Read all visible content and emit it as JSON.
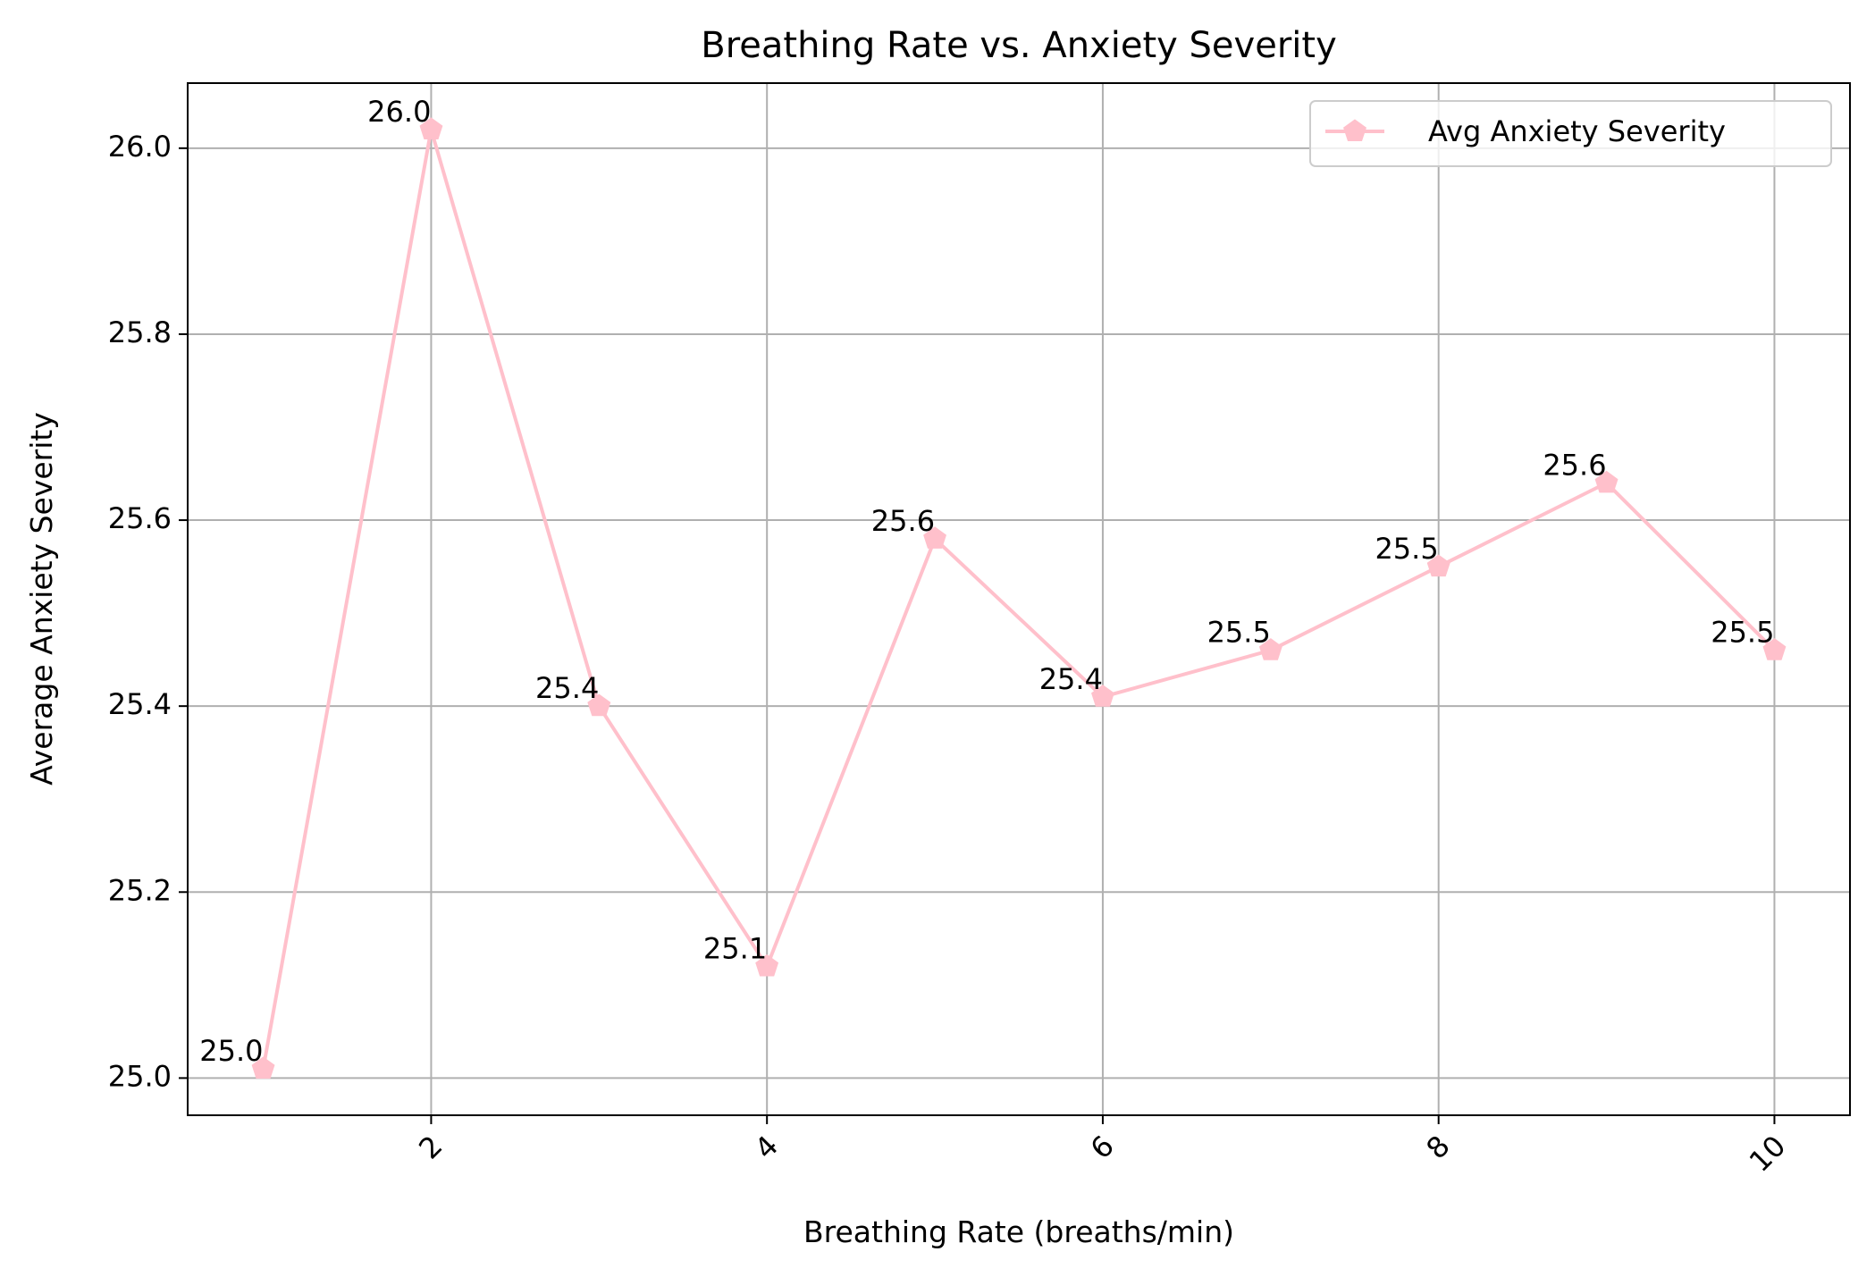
{
  "chart_data": {
    "type": "line",
    "title": "Breathing Rate vs. Anxiety Severity",
    "xlabel": "Breathing Rate (breaths/min)",
    "ylabel": "Average Anxiety Severity",
    "xlim": [
      0.55,
      10.45
    ],
    "ylim": [
      24.96,
      26.07
    ],
    "x_ticks": [
      2,
      4,
      6,
      8,
      10
    ],
    "x_tick_labels": [
      "2",
      "4",
      "6",
      "8",
      "10"
    ],
    "x_tick_rotation_deg": 45,
    "y_ticks": [
      25.0,
      25.2,
      25.4,
      25.6,
      25.8,
      26.0
    ],
    "y_tick_labels": [
      "25.0",
      "25.2",
      "25.4",
      "25.6",
      "25.8",
      "26.0"
    ],
    "grid": true,
    "legend_position": "top-right",
    "series": [
      {
        "name": "Avg Anxiety Severity",
        "color": "#ffc0cb",
        "marker": "pentagon",
        "x": [
          1,
          2,
          3,
          4,
          5,
          6,
          7,
          8,
          9,
          10
        ],
        "y": [
          25.01,
          26.02,
          25.4,
          25.12,
          25.58,
          25.41,
          25.46,
          25.55,
          25.64,
          25.46
        ],
        "data_labels": [
          "25.0",
          "26.0",
          "25.4",
          "25.1",
          "25.6",
          "25.4",
          "25.5",
          "25.5",
          "25.6",
          "25.5"
        ]
      }
    ]
  }
}
